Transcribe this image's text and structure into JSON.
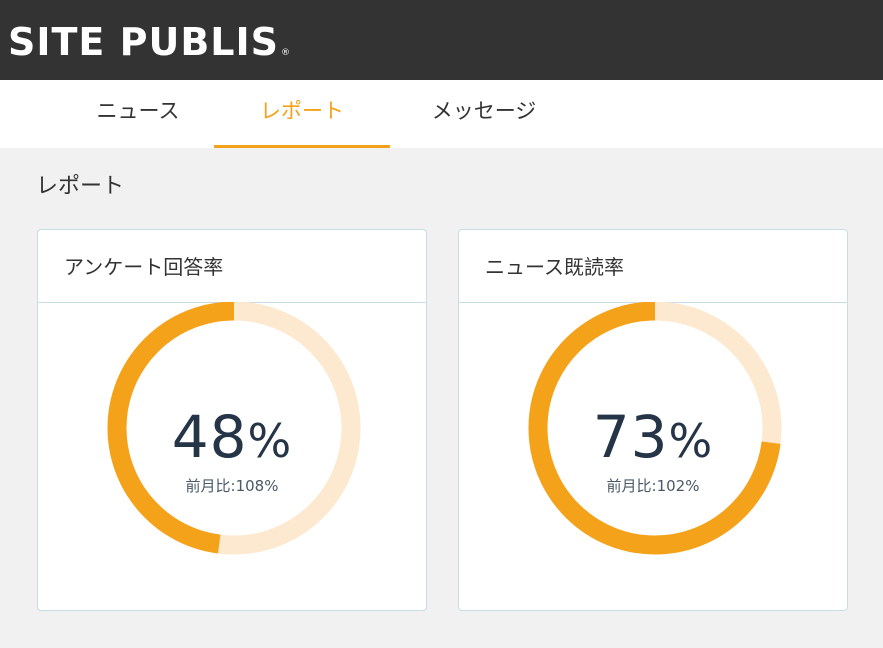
{
  "header": {
    "logo_text": "SITE PUBLIS",
    "logo_mark": "®"
  },
  "tabs": [
    {
      "label": "ニュース",
      "active": false
    },
    {
      "label": "レポート",
      "active": true
    },
    {
      "label": "メッセージ",
      "active": false
    }
  ],
  "section_title": "レポート",
  "cards": [
    {
      "title": "アンケート回答率",
      "value": "48",
      "unit": "%",
      "sub": "前月比:108%",
      "ratio": 0.48
    },
    {
      "title": "ニュース既読率",
      "value": "73",
      "unit": "%",
      "sub": "前月比:102%",
      "ratio": 0.73
    }
  ],
  "colors": {
    "header_bg": "#333333",
    "accent": "#f5a21b",
    "gauge_track": "#fde9cf",
    "card_border": "#c9dbe4"
  }
}
